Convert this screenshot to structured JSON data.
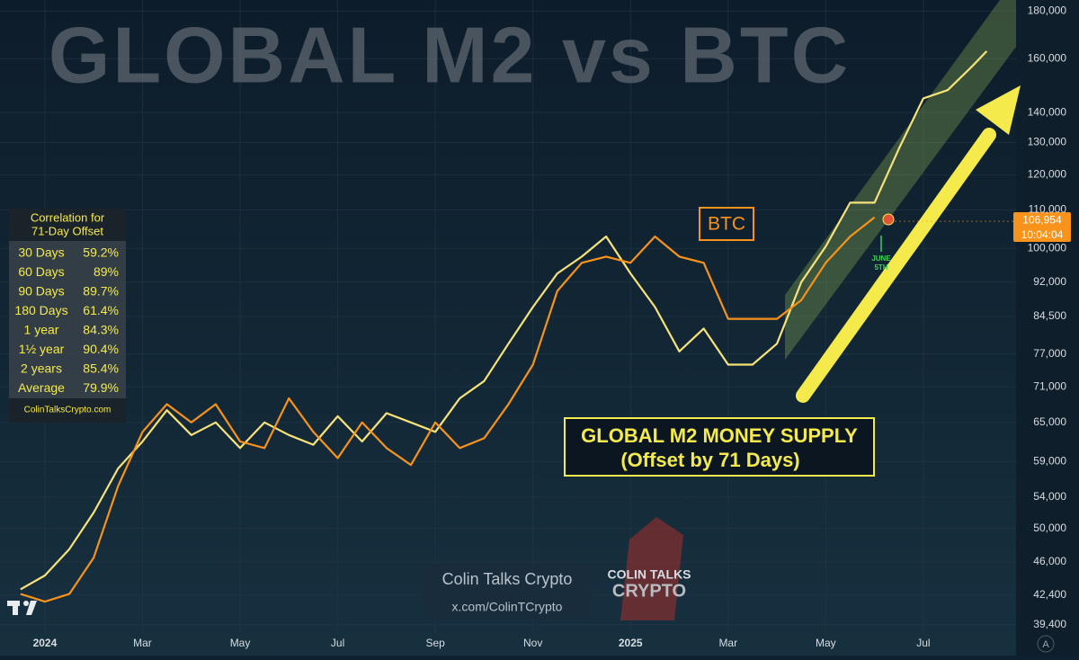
{
  "chart_data": {
    "type": "line",
    "title": "GLOBAL M2 vs BTC",
    "log_scale": true,
    "grid": true,
    "x": [
      -0.5,
      0,
      0.5,
      1,
      1.5,
      2,
      2.5,
      3,
      3.5,
      4,
      4.5,
      5,
      5.5,
      6,
      6.5,
      7,
      7.5,
      8,
      8.5,
      9,
      9.5,
      10,
      10.5,
      11,
      11.5,
      12,
      12.5,
      13,
      13.5,
      14,
      14.5,
      15,
      15.5,
      16,
      16.5,
      17,
      17.5,
      18,
      18.5,
      19,
      19.3
    ],
    "xlim": [
      -0.92,
      19.9
    ],
    "xticks": [
      {
        "value": 0,
        "label": "2024"
      },
      {
        "value": 2,
        "label": "Mar"
      },
      {
        "value": 4,
        "label": "May"
      },
      {
        "value": 6,
        "label": "Jul"
      },
      {
        "value": 8,
        "label": "Sep"
      },
      {
        "value": 10,
        "label": "Nov"
      },
      {
        "value": 12,
        "label": "2025"
      },
      {
        "value": 14,
        "label": "Mar"
      },
      {
        "value": 16,
        "label": "May"
      },
      {
        "value": 18,
        "label": "Jul"
      }
    ],
    "ylim": [
      38500,
      185000
    ],
    "yticks": [
      {
        "value": 39400,
        "label": "39,400"
      },
      {
        "value": 42400,
        "label": "42,400"
      },
      {
        "value": 46000,
        "label": "46,000"
      },
      {
        "value": 50000,
        "label": "50,000"
      },
      {
        "value": 54000,
        "label": "54,000"
      },
      {
        "value": 59000,
        "label": "59,000"
      },
      {
        "value": 65000,
        "label": "65,000"
      },
      {
        "value": 71000,
        "label": "71,000"
      },
      {
        "value": 77000,
        "label": "77,000"
      },
      {
        "value": 84500,
        "label": "84,500"
      },
      {
        "value": 92000,
        "label": "92,000"
      },
      {
        "value": 100000,
        "label": "100,000"
      },
      {
        "value": 110000,
        "label": "110,000"
      },
      {
        "value": 120000,
        "label": "120,000"
      },
      {
        "value": 130000,
        "label": "130,000"
      },
      {
        "value": 140000,
        "label": "140,000"
      },
      {
        "value": 160000,
        "label": "160,000"
      },
      {
        "value": 180000,
        "label": "180,000"
      }
    ],
    "series": [
      {
        "name": "GLOBAL M2 MONEY SUPPLY",
        "color": "#f7e27a",
        "values": [
          43000,
          44500,
          47500,
          52000,
          58000,
          62000,
          67000,
          63000,
          65000,
          61000,
          65000,
          63000,
          61500,
          66000,
          62000,
          66500,
          65000,
          63500,
          69000,
          72000,
          79000,
          86500,
          94000,
          98000,
          103000,
          94000,
          86500,
          77500,
          82000,
          75000,
          75000,
          79000,
          92000,
          100500,
          112000,
          112000,
          128000,
          145000,
          148000,
          157000,
          163000
        ]
      },
      {
        "name": "BTC",
        "color": "#f7931a",
        "values": [
          42500,
          41700,
          42500,
          46500,
          55500,
          63500,
          68000,
          65000,
          68000,
          62000,
          61000,
          69000,
          63500,
          59500,
          65000,
          61000,
          58500,
          65000,
          61000,
          62500,
          68000,
          75000,
          90000,
          96500,
          98000,
          96500,
          103000,
          98000,
          96500,
          84000,
          84000,
          84000,
          88000,
          96500,
          103000,
          108000,
          null,
          null,
          null,
          null,
          null
        ]
      }
    ],
    "last_price": {
      "value": 106954,
      "label": "106,954"
    },
    "countdown": "10:04:04",
    "m2_subtitle": "(Offset by 71 Days)",
    "date_marker": [
      "JUNE",
      "5TH"
    ],
    "auto_button": "A"
  },
  "correlation_table": {
    "title": [
      "Correlation for",
      "71-Day Offset"
    ],
    "rows": [
      [
        "30 Days",
        "59.2%"
      ],
      [
        "60 Days",
        "89%"
      ],
      [
        "90 Days",
        "89.7%"
      ],
      [
        "180 Days",
        "61.4%"
      ],
      [
        "1 year",
        "84.3%"
      ],
      [
        "1½ year",
        "90.4%"
      ],
      [
        "2 years",
        "85.4%"
      ],
      [
        "Average",
        "79.9%"
      ]
    ],
    "footer": "ColinTalksCrypto.com"
  },
  "watermark": {
    "name": "Colin Talks Crypto",
    "handle": "x.com/ColinTCrypto",
    "logo": [
      "COLIN TALKS",
      "CRYPTO"
    ]
  }
}
